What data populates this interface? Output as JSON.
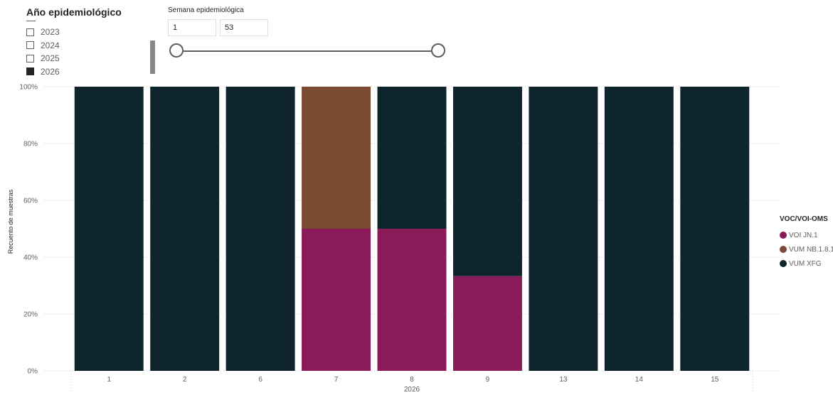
{
  "year_slicer": {
    "title": "Año epidemiológico",
    "items": [
      {
        "label": "2023",
        "checked": false
      },
      {
        "label": "2024",
        "checked": false
      },
      {
        "label": "2025",
        "checked": false
      },
      {
        "label": "2026",
        "checked": true
      }
    ]
  },
  "week_slicer": {
    "title": "Semana epidemiológica",
    "min_value": "1",
    "max_value": "53"
  },
  "legend": {
    "title": "VOC/VOI-OMS",
    "items": [
      {
        "label": "VOI JN.1",
        "color": "#8b1a58"
      },
      {
        "label": "VUM NB.1.8.1",
        "color": "#7b4a32"
      },
      {
        "label": "VUM XFG",
        "color": "#0f252d"
      }
    ]
  },
  "chart_data": {
    "type": "bar",
    "stacked": "100%",
    "categories": [
      "1",
      "2",
      "6",
      "7",
      "8",
      "9",
      "13",
      "14",
      "15"
    ],
    "series": [
      {
        "name": "VOI JN.1",
        "color": "#8b1a58",
        "values": [
          0,
          0,
          0,
          50,
          50,
          33.3,
          0,
          0,
          0
        ]
      },
      {
        "name": "VUM NB.1.8.1",
        "color": "#7b4a32",
        "values": [
          0,
          0,
          0,
          50,
          0,
          0,
          0,
          0,
          0
        ]
      },
      {
        "name": "VUM XFG",
        "color": "#0f252d",
        "values": [
          100,
          100,
          100,
          0,
          50,
          66.7,
          100,
          100,
          100
        ]
      }
    ],
    "xlabel": "2026",
    "ylabel": "Recuento de muestras",
    "ylim": [
      0,
      100
    ],
    "yticks": [
      "0%",
      "20%",
      "40%",
      "60%",
      "80%",
      "100%"
    ],
    "grid": true,
    "legend_position": "right"
  }
}
